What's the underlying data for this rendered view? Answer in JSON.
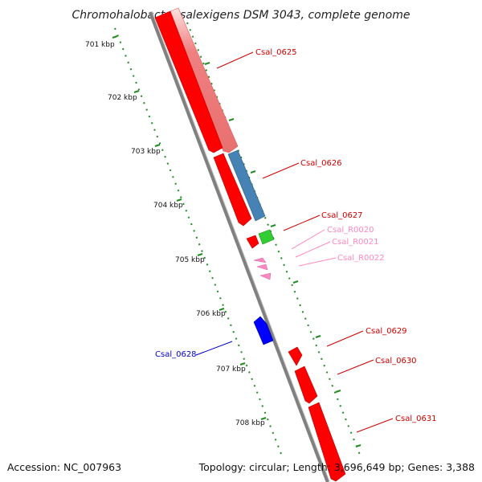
{
  "title": "Chromohalobacter salexigens DSM 3043, complete genome",
  "footer": {
    "accession": "Accession: NC_007963",
    "topology": "Topology: circular; Length: 3,696,649 bp; Genes: 3,388"
  },
  "scale": {
    "ticks": [
      "701 kbp",
      "702 kbp",
      "703 kbp",
      "704 kbp",
      "705 kbp",
      "706 kbp",
      "707 kbp",
      "708 kbp"
    ]
  },
  "colors": {
    "cds": "#ff0000",
    "cds_light": "#f08080",
    "cds_other": "#4682b4",
    "rrna": "#32cd32",
    "trna": "#ff88c0",
    "backbone": "#808080",
    "ruler": "#228b22",
    "highlight": "#0000ff"
  },
  "genes": [
    {
      "name": "Csal_0625",
      "color": "#cc0000"
    },
    {
      "name": "Csal_0626",
      "color": "#cc0000"
    },
    {
      "name": "Csal_0627",
      "color": "#cc0000"
    },
    {
      "name": "Csal_R0020",
      "color": "#ff88c0"
    },
    {
      "name": "Csal_R0021",
      "color": "#ff88c0"
    },
    {
      "name": "Csal_R0022",
      "color": "#ff88c0"
    },
    {
      "name": "Csal_0628",
      "color": "#0000ff"
    },
    {
      "name": "Csal_0629",
      "color": "#cc0000"
    },
    {
      "name": "Csal_0630",
      "color": "#cc0000"
    },
    {
      "name": "Csal_0631",
      "color": "#cc0000"
    }
  ]
}
